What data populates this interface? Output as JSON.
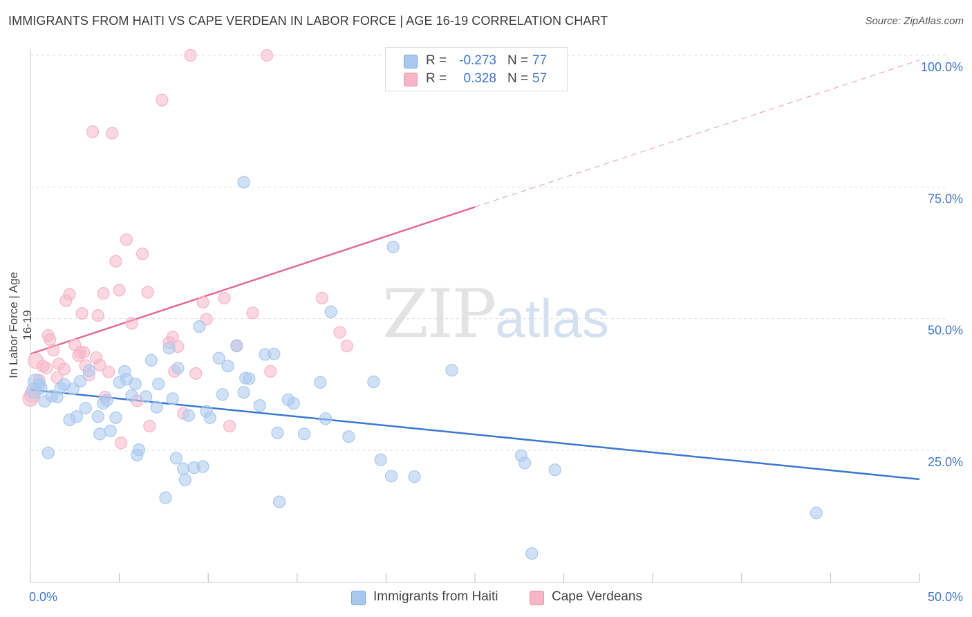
{
  "header": {
    "title": "IMMIGRANTS FROM HAITI VS CAPE VERDEAN IN LABOR FORCE | AGE 16-19 CORRELATION CHART",
    "source": "Source: ZipAtlas.com"
  },
  "watermark": {
    "zip": "ZIP",
    "atlas": "atlas"
  },
  "legend": {
    "rows": [
      {
        "r_label": "R =",
        "r_value": "-0.273",
        "n_label": "N =",
        "n_value": "77",
        "color": "#a9c8ef"
      },
      {
        "r_label": "R =",
        "r_value": "0.328",
        "n_label": "N =",
        "n_value": "57",
        "color": "#f6b6c8"
      }
    ]
  },
  "bottom_legend": [
    {
      "label": "Immigrants from Haiti",
      "color": "#a9c8ef"
    },
    {
      "label": "Cape Verdeans",
      "color": "#f6b6c8"
    }
  ],
  "chart_data": {
    "type": "scatter",
    "title": "IMMIGRANTS FROM HAITI VS CAPE VERDEAN IN LABOR FORCE | AGE 16-19 CORRELATION CHART",
    "xlabel": "",
    "ylabel": "In Labor Force | Age 16-19",
    "xlim": [
      0,
      50
    ],
    "ylim": [
      0,
      102
    ],
    "x_tick_labels": [
      "0.0%",
      "50.0%"
    ],
    "y_tick_labels": [
      "25.0%",
      "50.0%",
      "75.0%",
      "100.0%"
    ],
    "y_tick_values": [
      25,
      50,
      75,
      100
    ],
    "grid": true,
    "legend_position": "top-center",
    "series": [
      {
        "name": "Immigrants from Haiti",
        "color": "#3a78d0",
        "fill": "#a9c8ef",
        "trend": {
          "x0": 0,
          "y0": 36.5,
          "x1": 50,
          "y1": 19.5,
          "dashed_from": null
        },
        "points": [
          [
            0.3,
            38
          ],
          [
            0.5,
            37.5
          ],
          [
            0.6,
            36.8
          ],
          [
            0.8,
            34.3
          ],
          [
            1.0,
            24.5
          ],
          [
            1.2,
            35.3
          ],
          [
            1.5,
            35.1
          ],
          [
            1.7,
            36.8
          ],
          [
            1.9,
            37.5
          ],
          [
            2.2,
            30.8
          ],
          [
            2.4,
            36.7
          ],
          [
            2.6,
            31.4
          ],
          [
            2.8,
            38.1
          ],
          [
            3.1,
            33
          ],
          [
            3.3,
            40.1
          ],
          [
            3.8,
            31.4
          ],
          [
            3.9,
            28.1
          ],
          [
            4.1,
            33.9
          ],
          [
            4.3,
            34.5
          ],
          [
            4.5,
            28.7
          ],
          [
            4.8,
            31.2
          ],
          [
            5.0,
            37.9
          ],
          [
            5.3,
            40
          ],
          [
            5.4,
            38.5
          ],
          [
            5.7,
            35.4
          ],
          [
            5.9,
            37.6
          ],
          [
            6.0,
            24.1
          ],
          [
            6.1,
            25.1
          ],
          [
            6.5,
            35.2
          ],
          [
            6.8,
            42.1
          ],
          [
            7.1,
            33.2
          ],
          [
            7.2,
            37.6
          ],
          [
            7.6,
            16
          ],
          [
            7.8,
            44.4
          ],
          [
            8.0,
            34.8
          ],
          [
            8.2,
            23.5
          ],
          [
            8.3,
            40.6
          ],
          [
            8.6,
            21.5
          ],
          [
            8.7,
            19.4
          ],
          [
            8.9,
            31.6
          ],
          [
            9.2,
            21.7
          ],
          [
            9.5,
            48.5
          ],
          [
            9.7,
            21.9
          ],
          [
            9.9,
            32.4
          ],
          [
            10.1,
            31.2
          ],
          [
            10.6,
            42.5
          ],
          [
            10.8,
            35.6
          ],
          [
            11.1,
            41
          ],
          [
            11.6,
            44.8
          ],
          [
            12.0,
            36
          ],
          [
            12.1,
            38.7
          ],
          [
            12.3,
            38.6
          ],
          [
            12.0,
            75.9
          ],
          [
            12.9,
            33.5
          ],
          [
            13.2,
            43.2
          ],
          [
            13.7,
            43.3
          ],
          [
            13.9,
            28.3
          ],
          [
            14.0,
            15.2
          ],
          [
            14.5,
            34.6
          ],
          [
            14.8,
            33.9
          ],
          [
            15.4,
            28.1
          ],
          [
            16.3,
            37.9
          ],
          [
            16.6,
            31
          ],
          [
            16.9,
            51.3
          ],
          [
            17.9,
            27.6
          ],
          [
            19.3,
            38
          ],
          [
            19.7,
            23.2
          ],
          [
            20.3,
            20.1
          ],
          [
            20.4,
            63.6
          ],
          [
            21.6,
            20
          ],
          [
            23.7,
            40.2
          ],
          [
            27.6,
            24
          ],
          [
            27.8,
            22.6
          ],
          [
            28.2,
            5.4
          ],
          [
            29.5,
            21.3
          ],
          [
            44.2,
            13.1
          ],
          [
            0.2,
            36.3
          ]
        ]
      },
      {
        "name": "Cape Verdeans",
        "color": "#e26b93",
        "fill": "#f6b6c8",
        "trend": {
          "x0": 0,
          "y0": 43.3,
          "x1": 25,
          "y1": 71.2,
          "x2": 50,
          "y2": 99.1,
          "dashed_from": 25
        },
        "points": [
          [
            0.1,
            35.5
          ],
          [
            0.3,
            42
          ],
          [
            0.5,
            38.3
          ],
          [
            0.7,
            41
          ],
          [
            0.9,
            40.6
          ],
          [
            1.0,
            46.8
          ],
          [
            1.1,
            46
          ],
          [
            1.3,
            44
          ],
          [
            1.5,
            38.8
          ],
          [
            1.6,
            41.4
          ],
          [
            1.9,
            40.4
          ],
          [
            2.0,
            53.4
          ],
          [
            2.2,
            54.6
          ],
          [
            2.5,
            45
          ],
          [
            2.7,
            43
          ],
          [
            2.8,
            43.6
          ],
          [
            2.9,
            51
          ],
          [
            3.0,
            43.6
          ],
          [
            3.1,
            41.1
          ],
          [
            3.3,
            39.3
          ],
          [
            3.5,
            85.5
          ],
          [
            3.7,
            42.6
          ],
          [
            3.8,
            50.6
          ],
          [
            3.9,
            41.2
          ],
          [
            4.1,
            54.8
          ],
          [
            4.2,
            35.1
          ],
          [
            4.4,
            39.9
          ],
          [
            4.6,
            85.2
          ],
          [
            4.8,
            60.9
          ],
          [
            5.0,
            55.4
          ],
          [
            5.1,
            26.4
          ],
          [
            5.4,
            65
          ],
          [
            5.7,
            49.1
          ],
          [
            6.0,
            34.4
          ],
          [
            6.3,
            62.3
          ],
          [
            6.6,
            55
          ],
          [
            6.7,
            29.6
          ],
          [
            7.4,
            91.5
          ],
          [
            7.8,
            45.5
          ],
          [
            8.0,
            46.5
          ],
          [
            8.1,
            40
          ],
          [
            8.3,
            44.7
          ],
          [
            8.6,
            32
          ],
          [
            9.0,
            100
          ],
          [
            9.3,
            39.6
          ],
          [
            9.7,
            53.1
          ],
          [
            9.9,
            49.9
          ],
          [
            10.9,
            53.9
          ],
          [
            11.2,
            29.6
          ],
          [
            11.6,
            44.9
          ],
          [
            12.5,
            51.1
          ],
          [
            13.3,
            100
          ],
          [
            13.5,
            40
          ],
          [
            16.4,
            53.9
          ],
          [
            17.4,
            47.4
          ],
          [
            17.8,
            44.8
          ],
          [
            0.0,
            34.8
          ]
        ]
      }
    ]
  }
}
